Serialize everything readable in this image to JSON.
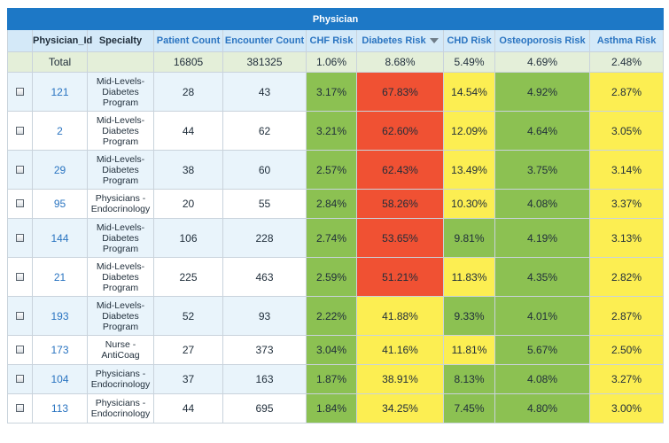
{
  "table": {
    "title": "Physician",
    "columns": [
      "Physician_Id",
      "Specialty",
      "Patient Count",
      "Encounter Count",
      "CHF Risk",
      "Diabetes Risk",
      "CHD Risk",
      "Osteoporosis Risk",
      "Asthma Risk"
    ],
    "sorted_column": "Diabetes Risk",
    "total": {
      "label": "Total",
      "patient_count": "16805",
      "encounter_count": "381325",
      "chf": "1.06%",
      "diabetes": "8.68%",
      "chd": "5.49%",
      "osteoporosis": "4.69%",
      "asthma": "2.48%"
    },
    "rows": [
      {
        "id": "121",
        "specialty": [
          "Mid-Levels-",
          "Diabetes",
          "Program"
        ],
        "patients": "28",
        "encounters": "43",
        "chf": "3.17%",
        "diabetes": "67.83%",
        "chd": "14.54%",
        "osteoporosis": "4.92%",
        "asthma": "2.87%"
      },
      {
        "id": "2",
        "specialty": [
          "Mid-Levels-",
          "Diabetes",
          "Program"
        ],
        "patients": "44",
        "encounters": "62",
        "chf": "3.21%",
        "diabetes": "62.60%",
        "chd": "12.09%",
        "osteoporosis": "4.64%",
        "asthma": "3.05%"
      },
      {
        "id": "29",
        "specialty": [
          "Mid-Levels-",
          "Diabetes",
          "Program"
        ],
        "patients": "38",
        "encounters": "60",
        "chf": "2.57%",
        "diabetes": "62.43%",
        "chd": "13.49%",
        "osteoporosis": "3.75%",
        "asthma": "3.14%"
      },
      {
        "id": "95",
        "specialty": [
          "Physicians -",
          "Endocrinology"
        ],
        "patients": "20",
        "encounters": "55",
        "chf": "2.84%",
        "diabetes": "58.26%",
        "chd": "10.30%",
        "osteoporosis": "4.08%",
        "asthma": "3.37%"
      },
      {
        "id": "144",
        "specialty": [
          "Mid-Levels-",
          "Diabetes",
          "Program"
        ],
        "patients": "106",
        "encounters": "228",
        "chf": "2.74%",
        "diabetes": "53.65%",
        "chd": "9.81%",
        "osteoporosis": "4.19%",
        "asthma": "3.13%"
      },
      {
        "id": "21",
        "specialty": [
          "Mid-Levels-",
          "Diabetes",
          "Program"
        ],
        "patients": "225",
        "encounters": "463",
        "chf": "2.59%",
        "diabetes": "51.21%",
        "chd": "11.83%",
        "osteoporosis": "4.35%",
        "asthma": "2.82%"
      },
      {
        "id": "193",
        "specialty": [
          "Mid-Levels-",
          "Diabetes",
          "Program"
        ],
        "patients": "52",
        "encounters": "93",
        "chf": "2.22%",
        "diabetes": "41.88%",
        "chd": "9.33%",
        "osteoporosis": "4.01%",
        "asthma": "2.87%"
      },
      {
        "id": "173",
        "specialty": [
          "Nurse -",
          "AntiCoag"
        ],
        "patients": "27",
        "encounters": "373",
        "chf": "3.04%",
        "diabetes": "41.16%",
        "chd": "11.81%",
        "osteoporosis": "5.67%",
        "asthma": "2.50%"
      },
      {
        "id": "104",
        "specialty": [
          "Physicians -",
          "Endocrinology"
        ],
        "patients": "37",
        "encounters": "163",
        "chf": "1.87%",
        "diabetes": "38.91%",
        "chd": "8.13%",
        "osteoporosis": "4.08%",
        "asthma": "3.27%"
      },
      {
        "id": "113",
        "specialty": [
          "Physicians -",
          "Endocrinology"
        ],
        "patients": "44",
        "encounters": "695",
        "chf": "1.84%",
        "diabetes": "34.25%",
        "chd": "7.45%",
        "osteoporosis": "4.80%",
        "asthma": "3.00%"
      }
    ],
    "row_colors": {
      "chf": [
        "green",
        "green",
        "green",
        "green",
        "green",
        "green",
        "green",
        "green",
        "green",
        "green"
      ],
      "diabetes": [
        "red",
        "red",
        "red",
        "red",
        "red",
        "red",
        "yellow",
        "yellow",
        "yellow",
        "yellow"
      ],
      "chd": [
        "yellow",
        "yellow",
        "yellow",
        "yellow",
        "green",
        "yellow",
        "green",
        "yellow",
        "green",
        "green"
      ],
      "osteoporosis": [
        "green",
        "green",
        "green",
        "green",
        "green",
        "green",
        "green",
        "green",
        "green",
        "green"
      ],
      "asthma": [
        "yellow",
        "yellow",
        "yellow",
        "yellow",
        "yellow",
        "yellow",
        "yellow",
        "yellow",
        "yellow",
        "yellow"
      ]
    },
    "colors": {
      "header_blue": "#1d78c6",
      "header_light": "#d4e9f8",
      "total_bg": "#e4efd9",
      "stripe": "#e9f4fb",
      "green": "#8cc152",
      "red": "#f05133",
      "yellow": "#fcee52",
      "id_link": "#2a74c1"
    }
  }
}
